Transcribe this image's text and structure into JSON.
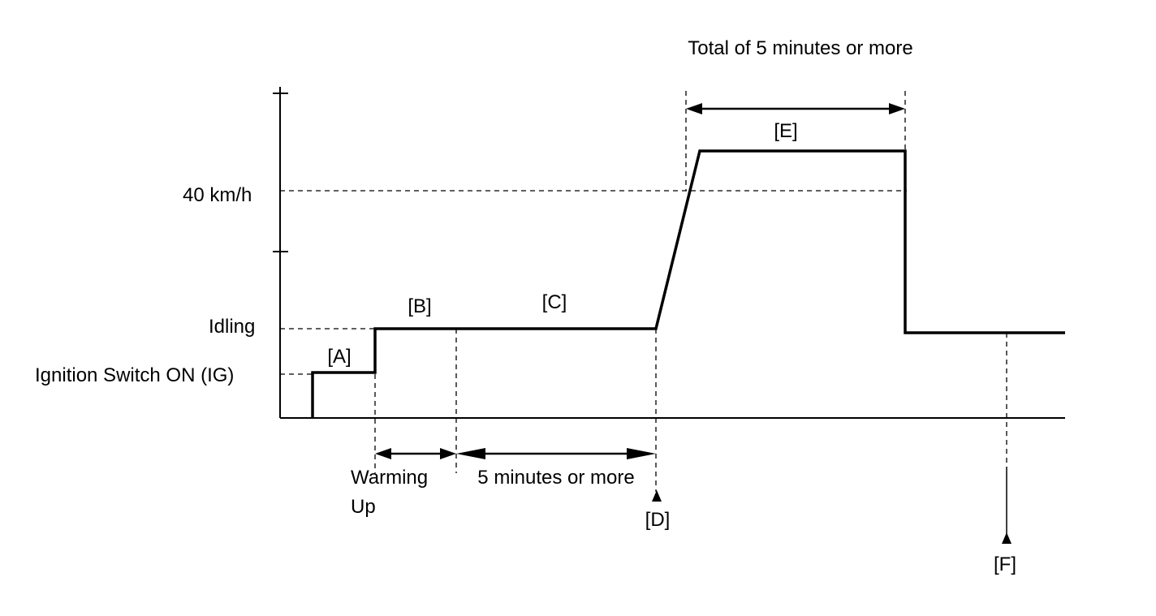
{
  "diagram": {
    "y_levels": {
      "speed": "40 km/h",
      "idling": "Idling",
      "ignition": "Ignition Switch ON (IG)"
    },
    "phases": {
      "a": "[A]",
      "b": "[B]",
      "c": "[C]",
      "e": "[E]"
    },
    "durations": {
      "warming_line1": "Warming",
      "warming_line2": "Up",
      "five_min": "5 minutes or more",
      "total_five_min": "Total of 5 minutes or more"
    },
    "markers": {
      "d": "[D]",
      "f": "[F]"
    }
  }
}
